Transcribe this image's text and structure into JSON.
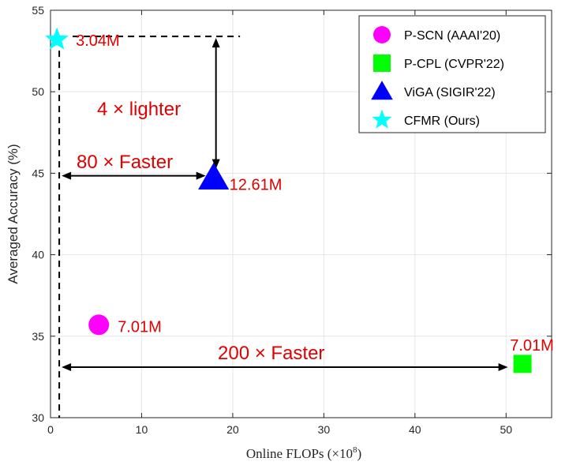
{
  "chart_data": {
    "type": "scatter",
    "xlabel": "Online FLOPs (×10",
    "xlabel_sup": "8",
    "xlabel_close": ")",
    "ylabel": "Averaged Accuracy (%)",
    "xlim": [
      0,
      55
    ],
    "ylim": [
      30,
      55
    ],
    "xticks": [
      "0",
      "10",
      "20",
      "30",
      "40",
      "50"
    ],
    "yticks": [
      "30",
      "35",
      "40",
      "45",
      "50",
      "55"
    ],
    "grid": true,
    "legend_position": "top-right",
    "series": [
      {
        "name": "P-SCN (AAAI'20)",
        "marker": "circle",
        "color": "#ff00ff",
        "x": 5.3,
        "y": 35.7,
        "label": "7.01M"
      },
      {
        "name": "P-CPL (CVPR'22)",
        "marker": "square",
        "color": "#00ff00",
        "x": 51.8,
        "y": 33.3,
        "label": "7.01M"
      },
      {
        "name": "ViGA (SIGIR'22)",
        "marker": "triangle",
        "color": "#0000ff",
        "x": 17.9,
        "y": 44.7,
        "label": "12.61M"
      },
      {
        "name": "CFMR (Ours)",
        "marker": "star",
        "color": "#00ffff",
        "x": 0.7,
        "y": 53.2,
        "label": "3.04M"
      }
    ],
    "annotations": {
      "lighter": "4 × lighter",
      "faster_80": "80 × Faster",
      "faster_200": "200 × Faster"
    }
  }
}
